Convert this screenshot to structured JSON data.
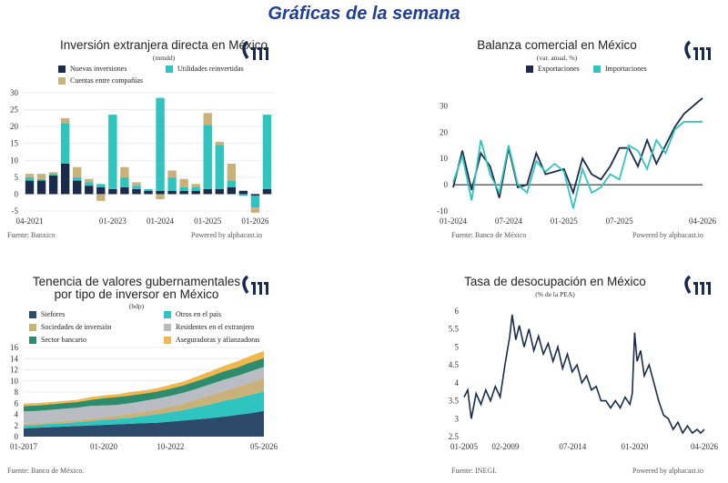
{
  "header": {
    "title": "Gráficas de la semana"
  },
  "chart_data": [
    {
      "type": "bar",
      "title": "Inversión extranjera directa en México",
      "subtitle": "(mmdd)",
      "source": "Fuente: Banxico",
      "powered": "Powered by alphacast.io",
      "stacked": true,
      "ylim": [
        -5,
        30
      ],
      "yticks": [
        -5,
        0,
        5,
        10,
        15,
        20,
        25,
        30
      ],
      "xticks": [
        {
          "i": 0,
          "label": "04-2021"
        },
        {
          "i": 7,
          "label": "01-2023"
        },
        {
          "i": 11,
          "label": "01-2024"
        },
        {
          "i": 15,
          "label": "01-2025"
        },
        {
          "i": 19,
          "label": "01-2026"
        }
      ],
      "legend": [
        {
          "name": "Nuevas inversiones",
          "color": "#1a2b4c"
        },
        {
          "name": "Utilidades reinvertidas",
          "color": "#2fc4c0"
        },
        {
          "name": "Cuentas entre compañías",
          "color": "#c9b27a"
        }
      ],
      "series": [
        {
          "name": "Nuevas inversiones",
          "color": "#1a2b4c",
          "values": [
            4,
            4,
            5.5,
            9,
            4,
            2.5,
            2,
            1.5,
            2,
            1.5,
            1,
            1,
            1,
            1,
            1,
            1.5,
            1.5,
            2,
            1,
            -0.5,
            1.5
          ]
        },
        {
          "name": "Utilidades reinvertidas",
          "color": "#2fc4c0",
          "values": [
            1,
            0.5,
            0.5,
            12,
            1,
            1,
            1,
            22,
            3,
            1,
            0.5,
            27.5,
            4,
            1,
            1,
            19,
            13,
            2,
            -0.5,
            -3.5,
            22
          ]
        },
        {
          "name": "Cuentas entre compañías",
          "color": "#c9b27a",
          "values": [
            1,
            1.5,
            0.5,
            1.5,
            3,
            1,
            -2,
            0,
            3,
            1,
            0,
            -1.5,
            2,
            2.5,
            1,
            3.5,
            1,
            5,
            0,
            -1.5,
            0
          ]
        }
      ]
    },
    {
      "type": "line",
      "title": "Balanza comercial en México",
      "subtitle": "(var. anual, %)",
      "source": "Fuente: Banco de México",
      "powered": "Powered by alphacast.io",
      "ylim": [
        -10,
        35
      ],
      "yticks": [
        -10,
        0,
        10,
        20,
        30
      ],
      "xticks": [
        {
          "i": 0,
          "label": "01-2024"
        },
        {
          "i": 6,
          "label": "07-2024"
        },
        {
          "i": 12,
          "label": "01-2025"
        },
        {
          "i": 18,
          "label": "07-2025"
        },
        {
          "i": 27,
          "label": "04-2026"
        }
      ],
      "series": [
        {
          "name": "Exportaciones",
          "color": "#1a2b4c",
          "values": [
            -1,
            13,
            -2,
            12,
            7,
            -5,
            14,
            -1,
            0,
            12,
            4,
            5,
            6,
            -3,
            10,
            4,
            2,
            7,
            14,
            14,
            7,
            17,
            8,
            15,
            22,
            27,
            30,
            33
          ]
        },
        {
          "name": "Importaciones",
          "color": "#2fc4c0",
          "values": [
            1,
            11,
            -6,
            17,
            4,
            -3,
            15,
            0,
            -3,
            9,
            5,
            8,
            5,
            -9,
            6,
            -3,
            -1,
            4,
            2,
            15,
            13,
            6,
            17,
            12,
            21,
            24,
            24,
            24
          ]
        }
      ]
    },
    {
      "type": "area",
      "title": "Tenencia de valores gubernamentales por tipo de inversor en México",
      "title_lines": [
        "Tenencia de valores gubernamentales",
        "por tipo de inversor en México"
      ],
      "subtitle": "(bdp)",
      "source": "Fuente: Banco de México.",
      "stacked": true,
      "ylim": [
        0,
        16
      ],
      "yticks": [
        0,
        2,
        4,
        6,
        8,
        10,
        12,
        14,
        16
      ],
      "xticks": [
        {
          "i": 0,
          "label": "01-2017"
        },
        {
          "i": 6,
          "label": "01-2020"
        },
        {
          "i": 11,
          "label": "10-2022"
        },
        {
          "i": 18,
          "label": "05-2026"
        }
      ],
      "legend": [
        {
          "name": "Siefores",
          "color": "#2d4a6b"
        },
        {
          "name": "Otros en el país",
          "color": "#2fc4c0"
        },
        {
          "name": "Sociedades de inversión",
          "color": "#c9b27a"
        },
        {
          "name": "Residentes en el extranjero",
          "color": "#b9bcc3"
        },
        {
          "name": "Sector bancario",
          "color": "#2e8b6e"
        },
        {
          "name": "Aseguradoras y afianzadoras",
          "color": "#f0b84a"
        }
      ],
      "series": [
        {
          "name": "Siefores",
          "color": "#2d4a6b",
          "values": [
            1.5,
            1.6,
            1.7,
            1.8,
            1.9,
            2.0,
            2.1,
            2.2,
            2.3,
            2.4,
            2.5,
            2.7,
            2.9,
            3.1,
            3.3,
            3.6,
            3.9,
            4.2,
            4.6
          ]
        },
        {
          "name": "Otros en el país",
          "color": "#2fc4c0",
          "values": [
            0.5,
            0.5,
            0.6,
            0.6,
            0.7,
            0.8,
            0.9,
            1.0,
            1.1,
            1.3,
            1.5,
            1.7,
            1.9,
            2.2,
            2.5,
            2.8,
            3.0,
            3.3,
            3.5
          ]
        },
        {
          "name": "Sociedades de inversión",
          "color": "#c9b27a",
          "values": [
            0.3,
            0.3,
            0.3,
            0.4,
            0.4,
            0.4,
            0.5,
            0.6,
            0.7,
            0.8,
            0.9,
            1.0,
            1.2,
            1.4,
            1.6,
            1.8,
            2.0,
            2.2,
            2.4
          ]
        },
        {
          "name": "Residentes en el extranjero",
          "color": "#b9bcc3",
          "values": [
            2.2,
            2.2,
            2.2,
            2.2,
            2.2,
            2.3,
            2.1,
            1.9,
            1.9,
            1.9,
            1.9,
            1.9,
            1.9,
            1.9,
            2.0,
            2.0,
            2.0,
            2.0,
            2.0
          ]
        },
        {
          "name": "Sector bancario",
          "color": "#2e8b6e",
          "values": [
            1.0,
            1.0,
            1.0,
            1.0,
            1.0,
            1.1,
            1.3,
            1.4,
            1.4,
            1.3,
            1.3,
            1.3,
            1.3,
            1.4,
            1.4,
            1.5,
            1.5,
            1.6,
            1.6
          ]
        },
        {
          "name": "Aseguradoras y afianzadoras",
          "color": "#f0b84a",
          "values": [
            0.4,
            0.4,
            0.4,
            0.4,
            0.4,
            0.5,
            0.5,
            0.5,
            0.6,
            0.6,
            0.6,
            0.7,
            0.7,
            0.8,
            0.9,
            1.0,
            1.1,
            1.2,
            1.3
          ]
        }
      ]
    },
    {
      "type": "line",
      "title": "Tasa de desocupación en México",
      "subtitle": "(% de la PEA)",
      "source": "Fuente: INEGI.",
      "powered": "Powered by alphacast.io",
      "ylim": [
        2.5,
        6
      ],
      "yticks": [
        2.5,
        3,
        3.5,
        4,
        4.5,
        5,
        5.5,
        6
      ],
      "xticks": [
        {
          "t": 0,
          "label": "01-2005"
        },
        {
          "t": 0.172,
          "label": "02-2009"
        },
        {
          "t": 0.452,
          "label": "07-2014"
        },
        {
          "t": 0.71,
          "label": "01-2020"
        },
        {
          "t": 1,
          "label": "04-2026"
        }
      ],
      "series": [
        {
          "name": "Tasa de desocupación",
          "color": "#1a2b4c",
          "points": [
            [
              0,
              3.6
            ],
            [
              0.015,
              3.8
            ],
            [
              0.03,
              3.0
            ],
            [
              0.05,
              3.7
            ],
            [
              0.07,
              3.4
            ],
            [
              0.09,
              3.8
            ],
            [
              0.11,
              3.5
            ],
            [
              0.13,
              3.9
            ],
            [
              0.15,
              3.6
            ],
            [
              0.17,
              4.5
            ],
            [
              0.19,
              5.3
            ],
            [
              0.2,
              5.9
            ],
            [
              0.215,
              5.2
            ],
            [
              0.23,
              5.6
            ],
            [
              0.25,
              5.0
            ],
            [
              0.27,
              5.5
            ],
            [
              0.29,
              4.9
            ],
            [
              0.31,
              5.3
            ],
            [
              0.33,
              4.8
            ],
            [
              0.35,
              5.1
            ],
            [
              0.37,
              4.6
            ],
            [
              0.39,
              5.0
            ],
            [
              0.41,
              4.4
            ],
            [
              0.43,
              4.8
            ],
            [
              0.45,
              4.3
            ],
            [
              0.47,
              4.5
            ],
            [
              0.49,
              4.0
            ],
            [
              0.51,
              4.2
            ],
            [
              0.53,
              3.8
            ],
            [
              0.55,
              3.9
            ],
            [
              0.57,
              3.5
            ],
            [
              0.59,
              3.5
            ],
            [
              0.61,
              3.3
            ],
            [
              0.63,
              3.5
            ],
            [
              0.65,
              3.3
            ],
            [
              0.67,
              3.6
            ],
            [
              0.69,
              3.4
            ],
            [
              0.7,
              3.7
            ],
            [
              0.71,
              5.4
            ],
            [
              0.72,
              4.6
            ],
            [
              0.735,
              4.9
            ],
            [
              0.75,
              4.2
            ],
            [
              0.77,
              4.5
            ],
            [
              0.79,
              4.0
            ],
            [
              0.81,
              3.5
            ],
            [
              0.83,
              3.1
            ],
            [
              0.85,
              3.0
            ],
            [
              0.87,
              2.7
            ],
            [
              0.89,
              2.9
            ],
            [
              0.91,
              2.6
            ],
            [
              0.93,
              2.8
            ],
            [
              0.95,
              2.6
            ],
            [
              0.97,
              2.7
            ],
            [
              0.985,
              2.6
            ],
            [
              1,
              2.7
            ]
          ]
        }
      ]
    }
  ]
}
